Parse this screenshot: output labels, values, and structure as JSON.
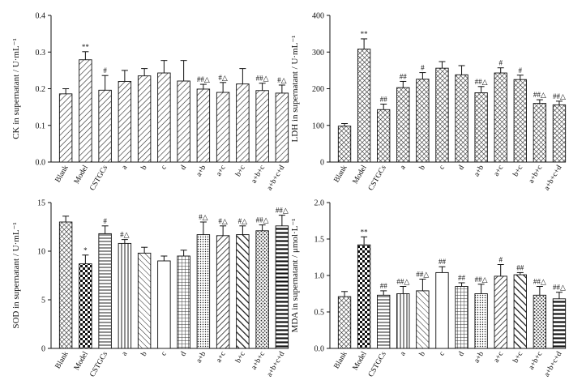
{
  "chart_data": [
    {
      "type": "bar",
      "ylabel": "CK in supernatant / U·mL⁻¹",
      "categories": [
        "Blank",
        "Model",
        "CSTGCs",
        "a",
        "b",
        "c",
        "d",
        "a+b",
        "a+c",
        "b+c",
        "a+b+c",
        "a+b+c+d"
      ],
      "values": [
        0.186,
        0.279,
        0.196,
        0.22,
        0.235,
        0.243,
        0.221,
        0.199,
        0.19,
        0.213,
        0.195,
        0.188
      ],
      "errors": [
        0.014,
        0.022,
        0.04,
        0.03,
        0.02,
        0.034,
        0.056,
        0.013,
        0.027,
        0.042,
        0.02,
        0.022
      ],
      "significance": [
        "",
        "**",
        "#",
        "",
        "",
        "",
        "",
        "##△",
        "#△",
        "",
        "##△",
        "#△"
      ],
      "ylim": [
        0,
        0.4
      ],
      "yticks": [
        "0.0",
        "0.1",
        "0.2",
        "0.3",
        "0.4"
      ],
      "patterns": [
        "hatch-diag"
      ]
    },
    {
      "type": "bar",
      "ylabel": "LDH in supernatant / U·mL⁻¹",
      "categories": [
        "Blank",
        "Model",
        "CSTGCs",
        "a",
        "b",
        "c",
        "d",
        "a+b",
        "a+c",
        "b+c",
        "a+b+c",
        "a+b+c+d"
      ],
      "values": [
        98,
        308,
        143,
        203,
        226,
        256,
        238,
        189,
        243,
        225,
        160,
        156
      ],
      "errors": [
        7,
        28,
        15,
        17,
        18,
        18,
        25,
        17,
        14,
        12,
        10,
        10
      ],
      "significance": [
        "",
        "**",
        "##",
        "##",
        "#",
        "",
        "",
        "##△",
        "#",
        "#",
        "##△",
        "##△"
      ],
      "ylim": [
        0,
        400
      ],
      "yticks": [
        "0",
        "100",
        "200",
        "300",
        "400"
      ],
      "patterns": [
        "crosshatch"
      ]
    },
    {
      "type": "bar",
      "ylabel": "SOD in supernatant / U·mL⁻¹",
      "categories": [
        "Blank",
        "Model",
        "CSTGCs",
        "a",
        "b",
        "c",
        "d",
        "a+b",
        "a+c",
        "b+c",
        "a+b+c",
        "a+b+c+d"
      ],
      "values": [
        13.0,
        8.7,
        11.8,
        10.8,
        9.8,
        9.0,
        9.5,
        11.7,
        11.6,
        11.7,
        12.1,
        12.6
      ],
      "errors": [
        0.6,
        0.9,
        0.8,
        0.4,
        0.6,
        0.5,
        0.6,
        1.3,
        1.0,
        0.9,
        0.6,
        1.1
      ],
      "significance": [
        "",
        "*",
        "#",
        "#△",
        "",
        "",
        "",
        "#△",
        "#△",
        "#△",
        "##△",
        "##△"
      ],
      "ylim": [
        0,
        15
      ],
      "yticks": [
        "0",
        "5",
        "10",
        "15"
      ],
      "patterns": [
        "crosshatch",
        "checker",
        "hlines",
        "vlines",
        "diag-dn",
        "blank",
        "grid",
        "dots",
        "diag-up",
        "diag-dn-thick",
        "dots-dense",
        "hlines-thick"
      ]
    },
    {
      "type": "bar",
      "ylabel": "MDA in supernatant / μmol·L⁻¹",
      "categories": [
        "Blank",
        "Model",
        "CSTGCs",
        "a",
        "b",
        "c",
        "d",
        "a+b",
        "a+c",
        "b+c",
        "a+b+c",
        "a+b+c+d"
      ],
      "values": [
        0.71,
        1.42,
        0.73,
        0.75,
        0.79,
        1.04,
        0.85,
        0.75,
        0.99,
        1.01,
        0.73,
        0.68
      ],
      "errors": [
        0.07,
        0.11,
        0.06,
        0.1,
        0.16,
        0.08,
        0.05,
        0.13,
        0.16,
        0.03,
        0.12,
        0.09
      ],
      "significance": [
        "",
        "**",
        "##",
        "##△",
        "##△",
        "##",
        "##",
        "##△",
        "#",
        "##",
        "##△",
        "##△"
      ],
      "ylim": [
        0,
        2.0
      ],
      "yticks": [
        "0.0",
        "0.5",
        "1.0",
        "1.5",
        "2.0"
      ],
      "patterns": [
        "crosshatch",
        "checker",
        "hlines",
        "vlines",
        "diag-dn",
        "blank",
        "grid",
        "dots",
        "diag-up",
        "diag-dn-thick",
        "dots-dense",
        "hlines-thick"
      ]
    }
  ]
}
